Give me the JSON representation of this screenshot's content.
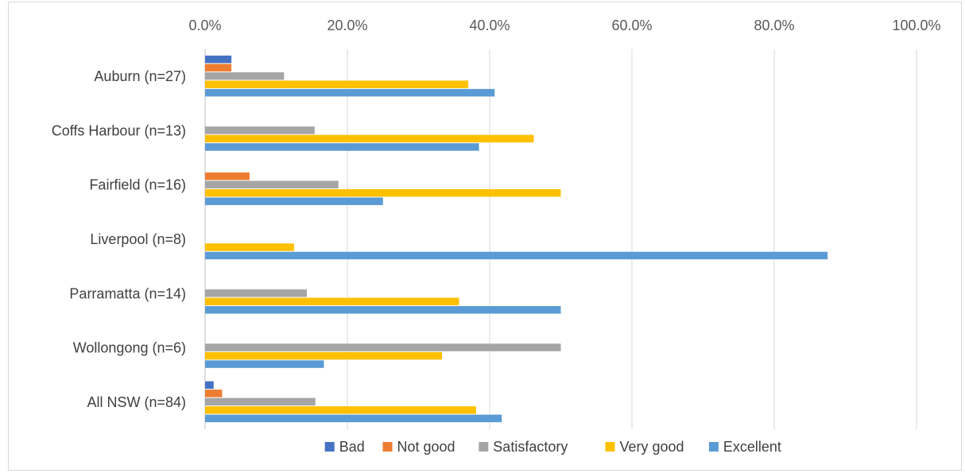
{
  "chart_data": {
    "type": "bar",
    "orientation": "horizontal",
    "categories": [
      "Auburn (n=27)",
      "Coffs Harbour (n=13)",
      "Fairfield (n=16)",
      "Liverpool (n=8)",
      "Parramatta (n=14)",
      "Wollongong (n=6)",
      "All NSW (n=84)"
    ],
    "series": [
      {
        "name": "Bad",
        "color": "#4472C4",
        "values": [
          3.7,
          0,
          0,
          0,
          0,
          0,
          1.2
        ]
      },
      {
        "name": "Not good",
        "color": "#ED7D31",
        "values": [
          3.7,
          0,
          6.25,
          0,
          0,
          0,
          2.4
        ]
      },
      {
        "name": "Satisfactory",
        "color": "#A5A5A5",
        "values": [
          11.1,
          15.4,
          18.75,
          0,
          14.3,
          50.0,
          15.5
        ]
      },
      {
        "name": "Very good",
        "color": "#FFC000",
        "values": [
          37.0,
          46.2,
          50.0,
          12.5,
          35.7,
          33.3,
          38.1
        ]
      },
      {
        "name": "Excellent",
        "color": "#5B9BD5",
        "values": [
          40.7,
          38.5,
          25.0,
          87.5,
          50.0,
          16.7,
          41.7
        ]
      }
    ],
    "x_ticks": [
      "0.0%",
      "20.0%",
      "40.0%",
      "60.0%",
      "80.0%",
      "100.0%"
    ],
    "xlim": [
      0,
      100
    ],
    "x_axis_position": "top",
    "grid": true,
    "legend_position": "bottom",
    "title": "",
    "xlabel": "",
    "ylabel": ""
  }
}
